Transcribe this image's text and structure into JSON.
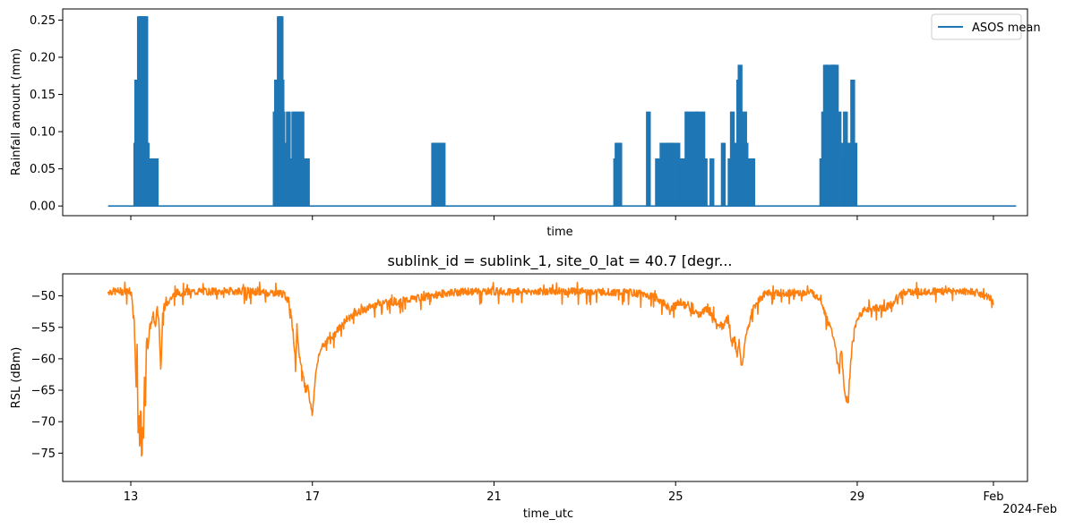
{
  "chart_data": [
    {
      "type": "line",
      "title": "",
      "xlabel": "time",
      "ylabel": "Rainfall amount (mm)",
      "ylim": [
        -0.013,
        0.265
      ],
      "yticks": [
        0.0,
        0.05,
        0.1,
        0.15,
        0.2,
        0.25
      ],
      "ytick_labels": [
        "0.00",
        "0.05",
        "0.10",
        "0.15",
        "0.20",
        "0.25"
      ],
      "x_unit": "day (Jan 2024; 32 = Feb 1)",
      "xlim": [
        11.5,
        32.75
      ],
      "xticks": [
        13,
        17,
        21,
        25,
        29,
        32
      ],
      "xtick_labels": [
        "",
        "",
        "",
        "",
        "",
        ""
      ],
      "legend": {
        "position": "top-right",
        "entries": [
          "ASOS mean"
        ]
      },
      "series": [
        {
          "name": "ASOS mean",
          "color": "#1f77b4",
          "x_range": [
            12.5,
            32.5
          ],
          "baseline": 0.0,
          "events": [
            {
              "x": 13.11,
              "value": 0.085
            },
            {
              "x": 13.13,
              "value": 0.17
            },
            {
              "x": 13.15,
              "value": 0.17
            },
            {
              "x": 13.17,
              "value": 0.085
            },
            {
              "x": 13.19,
              "value": 0.255
            },
            {
              "x": 13.21,
              "value": 0.255
            },
            {
              "x": 13.23,
              "value": 0.255
            },
            {
              "x": 13.25,
              "value": 0.255
            },
            {
              "x": 13.27,
              "value": 0.255
            },
            {
              "x": 13.29,
              "value": 0.255
            },
            {
              "x": 13.31,
              "value": 0.255
            },
            {
              "x": 13.33,
              "value": 0.255
            },
            {
              "x": 13.36,
              "value": 0.085
            },
            {
              "x": 13.4,
              "value": 0.064
            },
            {
              "x": 13.44,
              "value": 0.064
            },
            {
              "x": 13.5,
              "value": 0.064
            },
            {
              "x": 13.56,
              "value": 0.064
            },
            {
              "x": 16.18,
              "value": 0.127
            },
            {
              "x": 16.21,
              "value": 0.17
            },
            {
              "x": 16.23,
              "value": 0.127
            },
            {
              "x": 16.25,
              "value": 0.085
            },
            {
              "x": 16.27,
              "value": 0.255
            },
            {
              "x": 16.29,
              "value": 0.255
            },
            {
              "x": 16.31,
              "value": 0.255
            },
            {
              "x": 16.33,
              "value": 0.17
            },
            {
              "x": 16.35,
              "value": 0.127
            },
            {
              "x": 16.38,
              "value": 0.085
            },
            {
              "x": 16.41,
              "value": 0.064
            },
            {
              "x": 16.44,
              "value": 0.064
            },
            {
              "x": 16.47,
              "value": 0.127
            },
            {
              "x": 16.5,
              "value": 0.064
            },
            {
              "x": 16.53,
              "value": 0.064
            },
            {
              "x": 16.56,
              "value": 0.064
            },
            {
              "x": 16.59,
              "value": 0.127
            },
            {
              "x": 16.62,
              "value": 0.064
            },
            {
              "x": 16.65,
              "value": 0.064
            },
            {
              "x": 16.68,
              "value": 0.127
            },
            {
              "x": 16.71,
              "value": 0.064
            },
            {
              "x": 16.74,
              "value": 0.064
            },
            {
              "x": 16.77,
              "value": 0.127
            },
            {
              "x": 16.8,
              "value": 0.064
            },
            {
              "x": 16.83,
              "value": 0.064
            },
            {
              "x": 16.86,
              "value": 0.064
            },
            {
              "x": 16.89,
              "value": 0.064
            },
            {
              "x": 19.67,
              "value": 0.085
            },
            {
              "x": 19.7,
              "value": 0.085
            },
            {
              "x": 19.73,
              "value": 0.085
            },
            {
              "x": 19.76,
              "value": 0.085
            },
            {
              "x": 19.79,
              "value": 0.085
            },
            {
              "x": 19.82,
              "value": 0.085
            },
            {
              "x": 19.85,
              "value": 0.085
            },
            {
              "x": 19.88,
              "value": 0.085
            },
            {
              "x": 23.68,
              "value": 0.064
            },
            {
              "x": 23.71,
              "value": 0.085
            },
            {
              "x": 23.74,
              "value": 0.085
            },
            {
              "x": 23.77,
              "value": 0.085
            },
            {
              "x": 24.4,
              "value": 0.127
            },
            {
              "x": 24.6,
              "value": 0.064
            },
            {
              "x": 24.7,
              "value": 0.085
            },
            {
              "x": 24.75,
              "value": 0.064
            },
            {
              "x": 24.8,
              "value": 0.085
            },
            {
              "x": 24.85,
              "value": 0.085
            },
            {
              "x": 24.9,
              "value": 0.085
            },
            {
              "x": 24.95,
              "value": 0.085
            },
            {
              "x": 25.0,
              "value": 0.064
            },
            {
              "x": 25.05,
              "value": 0.085
            },
            {
              "x": 25.1,
              "value": 0.064
            },
            {
              "x": 25.15,
              "value": 0.064
            },
            {
              "x": 25.2,
              "value": 0.064
            },
            {
              "x": 25.25,
              "value": 0.127
            },
            {
              "x": 25.3,
              "value": 0.064
            },
            {
              "x": 25.35,
              "value": 0.127
            },
            {
              "x": 25.4,
              "value": 0.064
            },
            {
              "x": 25.45,
              "value": 0.127
            },
            {
              "x": 25.5,
              "value": 0.127
            },
            {
              "x": 25.55,
              "value": 0.064
            },
            {
              "x": 25.6,
              "value": 0.127
            },
            {
              "x": 25.65,
              "value": 0.064
            },
            {
              "x": 25.8,
              "value": 0.064
            },
            {
              "x": 26.05,
              "value": 0.085
            },
            {
              "x": 26.2,
              "value": 0.064
            },
            {
              "x": 26.25,
              "value": 0.127
            },
            {
              "x": 26.3,
              "value": 0.064
            },
            {
              "x": 26.33,
              "value": 0.085
            },
            {
              "x": 26.36,
              "value": 0.064
            },
            {
              "x": 26.39,
              "value": 0.17
            },
            {
              "x": 26.42,
              "value": 0.19
            },
            {
              "x": 26.45,
              "value": 0.085
            },
            {
              "x": 26.48,
              "value": 0.064
            },
            {
              "x": 26.52,
              "value": 0.127
            },
            {
              "x": 26.55,
              "value": 0.085
            },
            {
              "x": 26.58,
              "value": 0.064
            },
            {
              "x": 26.62,
              "value": 0.064
            },
            {
              "x": 26.66,
              "value": 0.064
            },
            {
              "x": 26.7,
              "value": 0.064
            },
            {
              "x": 28.22,
              "value": 0.064
            },
            {
              "x": 28.26,
              "value": 0.127
            },
            {
              "x": 28.3,
              "value": 0.19
            },
            {
              "x": 28.33,
              "value": 0.127
            },
            {
              "x": 28.36,
              "value": 0.19
            },
            {
              "x": 28.39,
              "value": 0.127
            },
            {
              "x": 28.42,
              "value": 0.064
            },
            {
              "x": 28.45,
              "value": 0.19
            },
            {
              "x": 28.48,
              "value": 0.19
            },
            {
              "x": 28.51,
              "value": 0.127
            },
            {
              "x": 28.54,
              "value": 0.19
            },
            {
              "x": 28.57,
              "value": 0.064
            },
            {
              "x": 28.6,
              "value": 0.127
            },
            {
              "x": 28.63,
              "value": 0.064
            },
            {
              "x": 28.66,
              "value": 0.064
            },
            {
              "x": 28.7,
              "value": 0.085
            },
            {
              "x": 28.74,
              "value": 0.127
            },
            {
              "x": 28.78,
              "value": 0.085
            },
            {
              "x": 28.82,
              "value": 0.064
            },
            {
              "x": 28.85,
              "value": 0.085
            },
            {
              "x": 28.9,
              "value": 0.17
            },
            {
              "x": 28.95,
              "value": 0.085
            }
          ]
        }
      ]
    },
    {
      "type": "line",
      "title": "sublink_id = sublink_1, site_0_lat = 40.7 [degr...",
      "xlabel": "time_utc",
      "ylabel": "RSL (dBm)",
      "ylim": [
        -79.5,
        -46.5
      ],
      "yticks": [
        -75,
        -70,
        -65,
        -60,
        -55,
        -50
      ],
      "ytick_labels": [
        "−75",
        "−70",
        "−65",
        "−60",
        "−55",
        "−50"
      ],
      "x_unit": "day (Jan 2024; 32 = Feb 1)",
      "xlim": [
        11.5,
        32.75
      ],
      "xticks": [
        13,
        17,
        21,
        25,
        29,
        32
      ],
      "xtick_labels": [
        "13",
        "17",
        "21",
        "25",
        "29",
        "Feb"
      ],
      "x_offset_label": "2024-Feb",
      "series": [
        {
          "name": "",
          "color": "#ff7f0e",
          "baseline": -49.3,
          "x": [
            12.5,
            13.0,
            13.05,
            13.08,
            13.1,
            13.12,
            13.14,
            13.16,
            13.18,
            13.2,
            13.22,
            13.24,
            13.26,
            13.28,
            13.3,
            13.32,
            13.35,
            13.38,
            13.42,
            13.46,
            13.5,
            13.54,
            13.58,
            13.62,
            13.66,
            13.7,
            13.8,
            14.0,
            14.5,
            15.0,
            15.5,
            16.0,
            16.3,
            16.4,
            16.5,
            16.55,
            16.6,
            16.63,
            16.66,
            16.7,
            16.75,
            16.8,
            16.85,
            16.9,
            16.95,
            17.0,
            17.05,
            17.1,
            17.2,
            17.35,
            17.5,
            17.7,
            17.9,
            18.2,
            18.5,
            18.8,
            19.2,
            19.6,
            20.0,
            20.5,
            21.0,
            22.0,
            23.0,
            24.0,
            24.5,
            24.7,
            24.9,
            25.1,
            25.3,
            25.5,
            25.7,
            25.9,
            26.05,
            26.15,
            26.25,
            26.3,
            26.35,
            26.4,
            26.45,
            26.5,
            26.55,
            26.6,
            26.7,
            26.85,
            27.0,
            27.5,
            28.0,
            28.2,
            28.3,
            28.4,
            28.5,
            28.55,
            28.6,
            28.65,
            28.7,
            28.75,
            28.8,
            28.85,
            28.9,
            28.95,
            29.05,
            29.2,
            29.4,
            29.6,
            29.8,
            30.0,
            30.5,
            31.0,
            31.5,
            32.0
          ],
          "y": [
            -49.3,
            -49.3,
            -51.5,
            -55,
            -60,
            -65,
            -58,
            -72,
            -68,
            -76,
            -66,
            -78,
            -70,
            -73,
            -62,
            -67,
            -56,
            -58,
            -55,
            -54,
            -53,
            -55,
            -52,
            -54,
            -62,
            -53,
            -51,
            -49.5,
            -49.3,
            -49.3,
            -49.2,
            -49.5,
            -49.5,
            -50,
            -51,
            -54,
            -58,
            -61,
            -56,
            -59,
            -61,
            -63,
            -65,
            -64,
            -67,
            -69,
            -64,
            -61,
            -58,
            -57,
            -56,
            -54,
            -53,
            -52,
            -51,
            -51,
            -50.5,
            -50,
            -49.5,
            -49.3,
            -49.3,
            -49.3,
            -49.3,
            -49.5,
            -50,
            -51,
            -52,
            -51,
            -52,
            -53,
            -52,
            -54,
            -55,
            -53,
            -58,
            -56,
            -60,
            -57,
            -62,
            -59,
            -56,
            -55,
            -52,
            -50.5,
            -49.5,
            -49.5,
            -49.5,
            -50.5,
            -53,
            -55,
            -57,
            -60,
            -62,
            -58,
            -64,
            -66,
            -67,
            -61,
            -57,
            -55,
            -53,
            -52,
            -52,
            -52,
            -51,
            -49.5,
            -49.3,
            -49.3,
            -49.3,
            -50.5
          ]
        }
      ]
    }
  ]
}
